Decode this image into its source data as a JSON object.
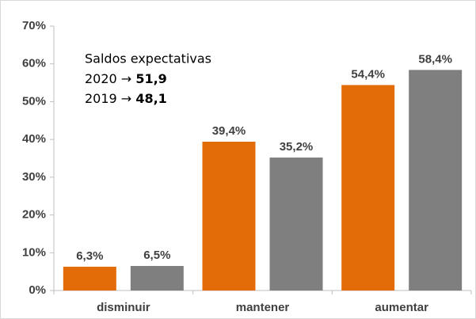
{
  "chart_data": {
    "type": "bar",
    "categories": [
      "disminuir",
      "mantener",
      "aumentar"
    ],
    "series": [
      {
        "color": "#e36c09",
        "values": [
          6.3,
          39.4,
          54.4
        ],
        "value_labels": [
          "6,3%",
          "39,4%",
          "54,4%"
        ]
      },
      {
        "color": "#7f7f7f",
        "values": [
          6.5,
          35.2,
          58.4
        ],
        "value_labels": [
          "6,5%",
          "35,2%",
          "58,4%"
        ]
      }
    ],
    "ylim": [
      0,
      70
    ],
    "yticks": [
      {
        "value": 0,
        "label": "0%"
      },
      {
        "value": 10,
        "label": "10%"
      },
      {
        "value": 20,
        "label": "20%"
      },
      {
        "value": 30,
        "label": "30%"
      },
      {
        "value": 40,
        "label": "40%"
      },
      {
        "value": 50,
        "label": "50%"
      },
      {
        "value": 60,
        "label": "60%"
      },
      {
        "value": 70,
        "label": "70%"
      }
    ],
    "annotation": {
      "title": "Saldos expectativas",
      "lines": [
        {
          "label": "2020 →",
          "value": "51,9"
        },
        {
          "label": "2019 →",
          "value": "48,1"
        }
      ]
    }
  }
}
